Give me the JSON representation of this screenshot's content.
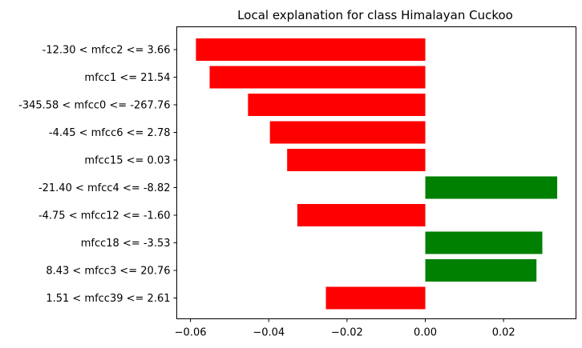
{
  "chart_data": {
    "type": "bar",
    "orientation": "horizontal",
    "title": "Local explanation for class Himalayan Cuckoo",
    "xlabel": "",
    "ylabel": "",
    "xlim": [
      -0.0635,
      0.0385
    ],
    "xticks": [
      -0.06,
      -0.04,
      -0.02,
      0.0,
      0.02
    ],
    "xtick_labels": [
      "−0.06",
      "−0.04",
      "−0.02",
      "0.00",
      "0.02"
    ],
    "grid": false,
    "legend": "none",
    "colors": {
      "negative": "#ff0000",
      "positive": "#008000"
    },
    "categories": [
      "-12.30 < mfcc2 <= 3.66",
      "mfcc1 <= 21.54",
      "-345.58 < mfcc0 <= -267.76",
      "-4.45 < mfcc6 <= 2.78",
      "mfcc15 <= 0.03",
      "-21.40 < mfcc4 <= -8.82",
      "-4.75 < mfcc12 <= -1.60",
      "mfcc18 <= -3.53",
      "8.43 < mfcc3 <= 20.76",
      "1.51 < mfcc39 <= 2.61"
    ],
    "values": [
      -0.0586,
      -0.0551,
      -0.0453,
      -0.0397,
      -0.0353,
      0.0337,
      -0.0327,
      0.0299,
      0.0284,
      -0.0254
    ]
  }
}
